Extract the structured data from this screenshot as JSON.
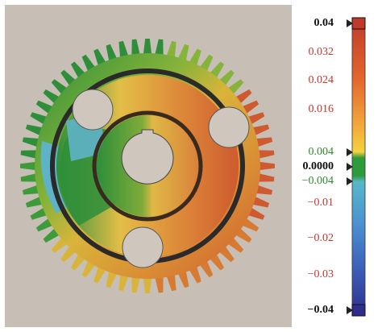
{
  "colormap": {
    "ticks": [
      {
        "label": "0.04",
        "value": 0.04,
        "color": "#111111",
        "bold": true,
        "marker": true
      },
      {
        "label": "0.032",
        "value": 0.032,
        "color": "#c0392b",
        "bold": false,
        "marker": false
      },
      {
        "label": "0.024",
        "value": 0.024,
        "color": "#c0392b",
        "bold": false,
        "marker": false
      },
      {
        "label": "0.016",
        "value": 0.016,
        "color": "#c0392b",
        "bold": false,
        "marker": false
      },
      {
        "label": "0.004",
        "value": 0.004,
        "color": "#2e8b2e",
        "bold": false,
        "marker": true
      },
      {
        "label": "0.0000",
        "value": 0.0,
        "color": "#111111",
        "bold": true,
        "marker": true
      },
      {
        "label": "−0.004",
        "value": -0.004,
        "color": "#2e8b2e",
        "bold": false,
        "marker": true
      },
      {
        "label": "−0.01",
        "value": -0.01,
        "color": "#c0392b",
        "bold": false,
        "marker": false
      },
      {
        "label": "−0.02",
        "value": -0.02,
        "color": "#c0392b",
        "bold": false,
        "marker": false
      },
      {
        "label": "−0.03",
        "value": -0.03,
        "color": "#c0392b",
        "bold": false,
        "marker": false
      },
      {
        "label": "−0.04",
        "value": -0.04,
        "color": "#111111",
        "bold": true,
        "marker": true
      }
    ],
    "bands": [
      "#c0392b",
      "#d9472b",
      "#e66a2c",
      "#ee8d33",
      "#f3ae3a",
      "#f6cf3e",
      "#cfd33a",
      "#2e9b3a",
      "#2e9b3a",
      "#4fb3c5",
      "#5a9fd4",
      "#4f8ed0",
      "#4474c4",
      "#3b5cb6",
      "#3845a6",
      "#2e2f8c"
    ]
  },
  "colors": {
    "background": "#c7bfb6",
    "gear_green": "#2e8e3a",
    "gear_yellow": "#d9b43a",
    "gear_orange": "#d77b32",
    "gear_red": "#cf5a2f",
    "gear_cyan": "#5fb3c7",
    "hole": "#cfc6bd"
  }
}
